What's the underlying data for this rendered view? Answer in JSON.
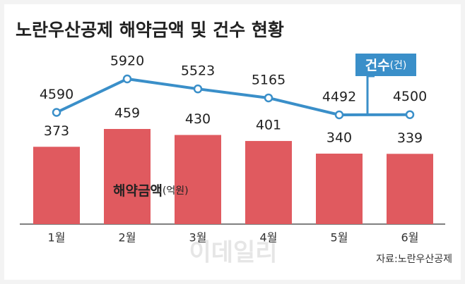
{
  "chart_data": {
    "type": "combo",
    "title": "노란우산공제 해약금액 및 건수 현황",
    "categories": [
      "1월",
      "2월",
      "3월",
      "4월",
      "5월",
      "6월"
    ],
    "series": [
      {
        "name": "해약금액",
        "unit": "(억원)",
        "type": "bar",
        "color": "#e05a5f",
        "values": [
          373,
          459,
          430,
          401,
          340,
          339
        ]
      },
      {
        "name": "건수",
        "unit": "(건)",
        "type": "line",
        "color": "#3a8fc9",
        "values": [
          4590,
          5920,
          5523,
          5165,
          4492,
          4500
        ]
      }
    ],
    "source": "자료:노란우산공제",
    "watermark": "이데일리"
  }
}
